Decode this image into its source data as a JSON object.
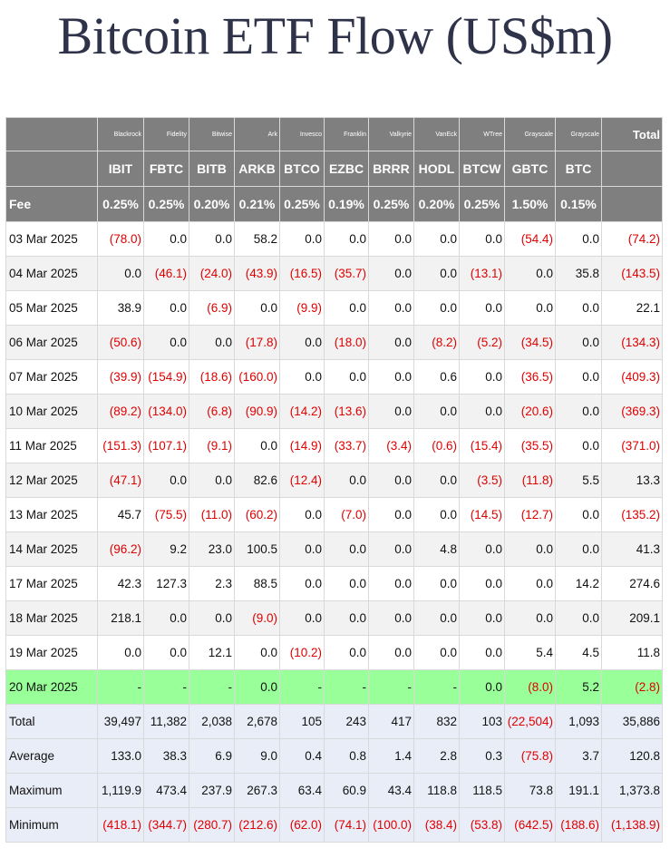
{
  "title": "Bitcoin ETF Flow (US$m)",
  "colors": {
    "header_bg": "#7f7f7f",
    "highlight_row": "#99ff99",
    "negative": "#e00000",
    "summary_bg": "#e9edf7"
  },
  "issuers": [
    "Blackrock",
    "Fidelity",
    "Bitwise",
    "Ark",
    "Invesco",
    "Franklin",
    "Valkyrie",
    "VanEck",
    "WTree",
    "Grayscale",
    "Grayscale"
  ],
  "total_header": "Total",
  "tickers": [
    "IBIT",
    "FBTC",
    "BITB",
    "ARKB",
    "BTCO",
    "EZBC",
    "BRRR",
    "HODL",
    "BTCW",
    "GBTC",
    "BTC"
  ],
  "fee_label": "Fee",
  "fees": [
    "0.25%",
    "0.25%",
    "0.20%",
    "0.21%",
    "0.25%",
    "0.19%",
    "0.25%",
    "0.20%",
    "0.25%",
    "1.50%",
    "0.15%"
  ],
  "rows": [
    {
      "date": "03 Mar 2025",
      "values": [
        "(78.0)",
        "0.0",
        "0.0",
        "58.2",
        "0.0",
        "0.0",
        "0.0",
        "0.0",
        "0.0",
        "(54.4)",
        "0.0",
        "(74.2)"
      ]
    },
    {
      "date": "04 Mar 2025",
      "values": [
        "0.0",
        "(46.1)",
        "(24.0)",
        "(43.9)",
        "(16.5)",
        "(35.7)",
        "0.0",
        "0.0",
        "(13.1)",
        "0.0",
        "35.8",
        "(143.5)"
      ]
    },
    {
      "date": "05 Mar 2025",
      "values": [
        "38.9",
        "0.0",
        "(6.9)",
        "0.0",
        "(9.9)",
        "0.0",
        "0.0",
        "0.0",
        "0.0",
        "0.0",
        "0.0",
        "22.1"
      ]
    },
    {
      "date": "06 Mar 2025",
      "values": [
        "(50.6)",
        "0.0",
        "0.0",
        "(17.8)",
        "0.0",
        "(18.0)",
        "0.0",
        "(8.2)",
        "(5.2)",
        "(34.5)",
        "0.0",
        "(134.3)"
      ]
    },
    {
      "date": "07 Mar 2025",
      "values": [
        "(39.9)",
        "(154.9)",
        "(18.6)",
        "(160.0)",
        "0.0",
        "0.0",
        "0.0",
        "0.6",
        "0.0",
        "(36.5)",
        "0.0",
        "(409.3)"
      ]
    },
    {
      "date": "10 Mar 2025",
      "values": [
        "(89.2)",
        "(134.0)",
        "(6.8)",
        "(90.9)",
        "(14.2)",
        "(13.6)",
        "0.0",
        "0.0",
        "0.0",
        "(20.6)",
        "0.0",
        "(369.3)"
      ]
    },
    {
      "date": "11 Mar 2025",
      "values": [
        "(151.3)",
        "(107.1)",
        "(9.1)",
        "0.0",
        "(14.9)",
        "(33.7)",
        "(3.4)",
        "(0.6)",
        "(15.4)",
        "(35.5)",
        "0.0",
        "(371.0)"
      ]
    },
    {
      "date": "12 Mar 2025",
      "values": [
        "(47.1)",
        "0.0",
        "0.0",
        "82.6",
        "(12.4)",
        "0.0",
        "0.0",
        "0.0",
        "(3.5)",
        "(11.8)",
        "5.5",
        "13.3"
      ]
    },
    {
      "date": "13 Mar 2025",
      "values": [
        "45.7",
        "(75.5)",
        "(11.0)",
        "(60.2)",
        "0.0",
        "(7.0)",
        "0.0",
        "0.0",
        "(14.5)",
        "(12.7)",
        "0.0",
        "(135.2)"
      ]
    },
    {
      "date": "14 Mar 2025",
      "values": [
        "(96.2)",
        "9.2",
        "23.0",
        "100.5",
        "0.0",
        "0.0",
        "0.0",
        "4.8",
        "0.0",
        "0.0",
        "0.0",
        "41.3"
      ]
    },
    {
      "date": "17 Mar 2025",
      "values": [
        "42.3",
        "127.3",
        "2.3",
        "88.5",
        "0.0",
        "0.0",
        "0.0",
        "0.0",
        "0.0",
        "0.0",
        "14.2",
        "274.6"
      ]
    },
    {
      "date": "18 Mar 2025",
      "values": [
        "218.1",
        "0.0",
        "0.0",
        "(9.0)",
        "0.0",
        "0.0",
        "0.0",
        "0.0",
        "0.0",
        "0.0",
        "0.0",
        "209.1"
      ]
    },
    {
      "date": "19 Mar 2025",
      "values": [
        "0.0",
        "0.0",
        "12.1",
        "0.0",
        "(10.2)",
        "0.0",
        "0.0",
        "0.0",
        "0.0",
        "5.4",
        "4.5",
        "11.8"
      ]
    },
    {
      "date": "20 Mar 2025",
      "highlight": true,
      "values": [
        "-",
        "-",
        "-",
        "0.0",
        "-",
        "-",
        "-",
        "-",
        "0.0",
        "(8.0)",
        "5.2",
        "(2.8)"
      ]
    }
  ],
  "summary": [
    {
      "label": "Total",
      "values": [
        "39,497",
        "11,382",
        "2,038",
        "2,678",
        "105",
        "243",
        "417",
        "832",
        "103",
        "(22,504)",
        "1,093",
        "35,886"
      ]
    },
    {
      "label": "Average",
      "values": [
        "133.0",
        "38.3",
        "6.9",
        "9.0",
        "0.4",
        "0.8",
        "1.4",
        "2.8",
        "0.3",
        "(75.8)",
        "3.7",
        "120.8"
      ]
    },
    {
      "label": "Maximum",
      "values": [
        "1,119.9",
        "473.4",
        "237.9",
        "267.3",
        "63.4",
        "60.9",
        "43.4",
        "118.8",
        "118.5",
        "73.8",
        "191.1",
        "1,373.8"
      ]
    },
    {
      "label": "Minimum",
      "values": [
        "(418.1)",
        "(344.7)",
        "(280.7)",
        "(212.6)",
        "(62.0)",
        "(74.1)",
        "(100.0)",
        "(38.4)",
        "(53.8)",
        "(642.5)",
        "(188.6)",
        "(1,138.9)"
      ]
    }
  ]
}
